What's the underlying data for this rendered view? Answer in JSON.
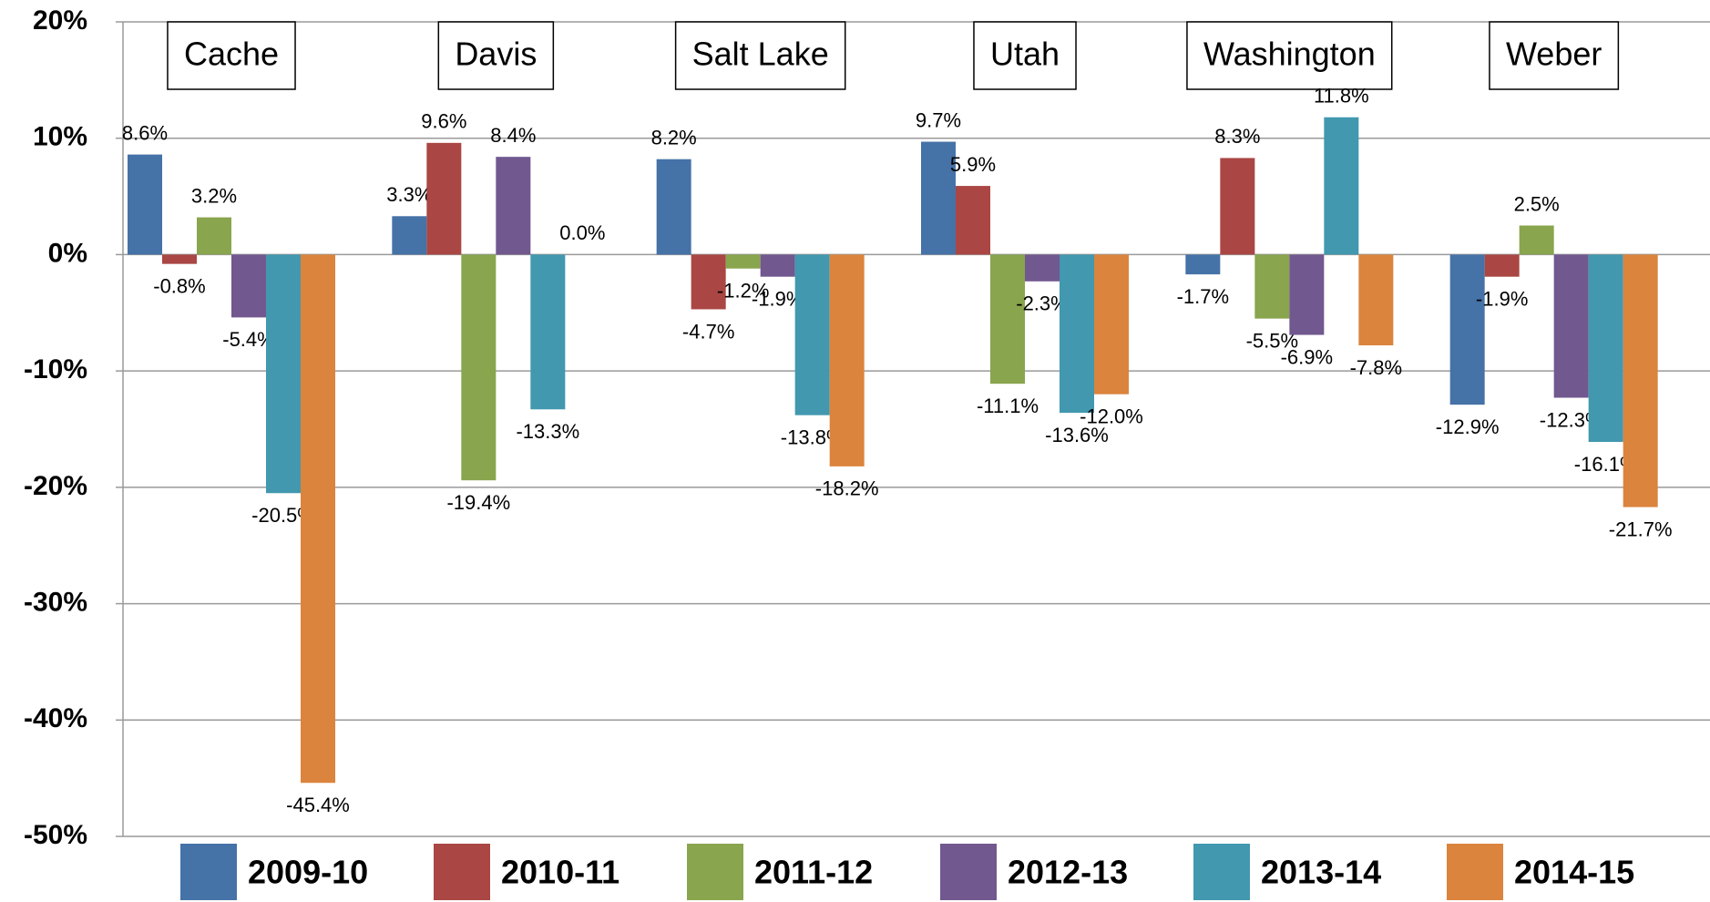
{
  "chart_data": {
    "type": "bar",
    "categories": [
      "Cache",
      "Davis",
      "Salt Lake",
      "Utah",
      "Washington",
      "Weber"
    ],
    "series": [
      {
        "name": "2009-10",
        "color": "#4572a7",
        "values": [
          8.6,
          3.3,
          8.2,
          9.7,
          -1.7,
          -12.9
        ],
        "value_labels": [
          "8.6%",
          "3.3%",
          "8.2%",
          "9.7%",
          "-1.7%",
          "-12.9%"
        ]
      },
      {
        "name": "2010-11",
        "color": "#aa4643",
        "values": [
          -0.8,
          9.6,
          -4.7,
          5.9,
          8.3,
          -1.9
        ],
        "value_labels": [
          "-0.8%",
          "9.6%",
          "-4.7%",
          "5.9%",
          "8.3%",
          "-1.9%"
        ]
      },
      {
        "name": "2011-12",
        "color": "#89a54e",
        "values": [
          3.2,
          -19.4,
          -1.2,
          -11.1,
          -5.5,
          2.5
        ],
        "value_labels": [
          "3.2%",
          "-19.4%",
          "-1.2%",
          "-11.1%",
          "-5.5%",
          "2.5%"
        ]
      },
      {
        "name": "2012-13",
        "color": "#71588f",
        "values": [
          -5.4,
          8.4,
          -1.9,
          -2.3,
          -6.9,
          -12.3
        ],
        "value_labels": [
          "-5.4%",
          "8.4%",
          "-1.9%",
          "-2.3%",
          "-6.9%",
          "-12.3%"
        ]
      },
      {
        "name": "2013-14",
        "color": "#4198af",
        "values": [
          -20.5,
          -13.3,
          -13.8,
          -13.6,
          11.8,
          -16.1
        ],
        "value_labels": [
          "-20.5%",
          "-13.3%",
          "-13.8%",
          "-13.6%",
          "11.8%",
          "-16.1%"
        ]
      },
      {
        "name": "2014-15",
        "color": "#db843d",
        "values": [
          -45.4,
          0.0,
          -18.2,
          -12.0,
          -7.8,
          -21.7
        ],
        "value_labels": [
          "-45.4%",
          "0.0%",
          "-18.2%",
          "-12.0%",
          "-7.8%",
          "-21.7%"
        ]
      }
    ],
    "ylim": [
      -50,
      20
    ],
    "yticks": [
      {
        "value": -50,
        "label": "-50%"
      },
      {
        "value": -40,
        "label": "-40%"
      },
      {
        "value": -30,
        "label": "-30%"
      },
      {
        "value": -20,
        "label": "-20%"
      },
      {
        "value": -10,
        "label": "-10%"
      },
      {
        "value": 0,
        "label": "0%"
      },
      {
        "value": 10,
        "label": "10%"
      },
      {
        "value": 20,
        "label": "20%"
      }
    ],
    "grid": true,
    "legend": "bottom"
  }
}
